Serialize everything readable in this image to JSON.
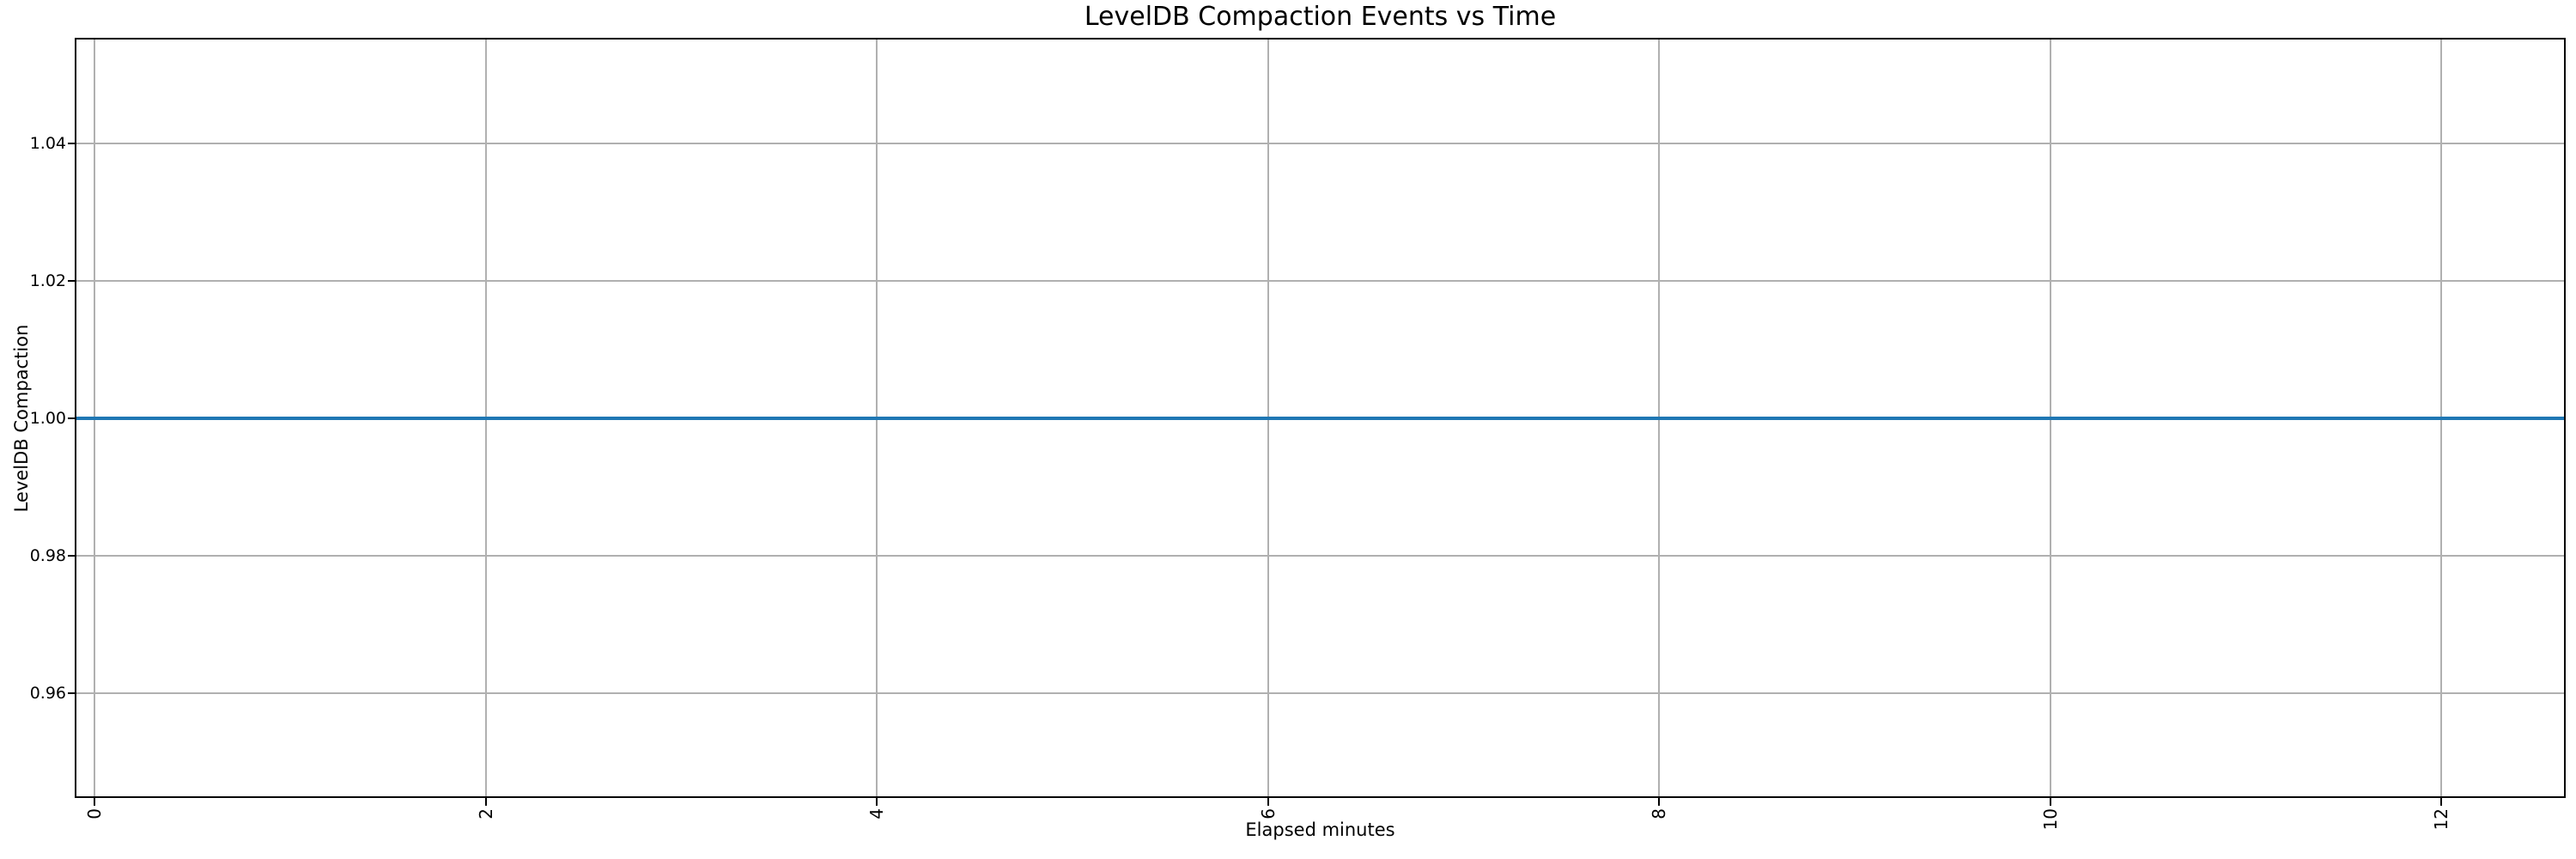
{
  "chart_data": {
    "type": "line",
    "title": "LevelDB Compaction Events vs Time",
    "xlabel": "Elapsed minutes",
    "ylabel": "LevelDB Compaction",
    "xlim": [
      -0.097,
      12.632
    ],
    "ylim": [
      0.9449,
      1.0553
    ],
    "grid": true,
    "legend_position": "none",
    "x_ticks": {
      "values": [
        0,
        2,
        4,
        6,
        8,
        10,
        12
      ],
      "labels": [
        "0",
        "2",
        "4",
        "6",
        "8",
        "10",
        "12"
      ],
      "rotation_degrees": 90
    },
    "y_ticks": {
      "values": [
        0.96,
        0.98,
        1.0,
        1.02,
        1.04
      ],
      "labels": [
        "0.96",
        "0.98",
        "1.00",
        "1.02",
        "1.04"
      ]
    },
    "series": [
      {
        "name": "LevelDB Compaction",
        "style": "horizontal-line-full-width",
        "y_value": 1.0,
        "color": "#1f77b4"
      }
    ],
    "colors": {
      "line": "#1f77b4",
      "grid": "#b0b0b0",
      "spine": "#000000",
      "text": "#000000",
      "background": "#ffffff"
    }
  }
}
